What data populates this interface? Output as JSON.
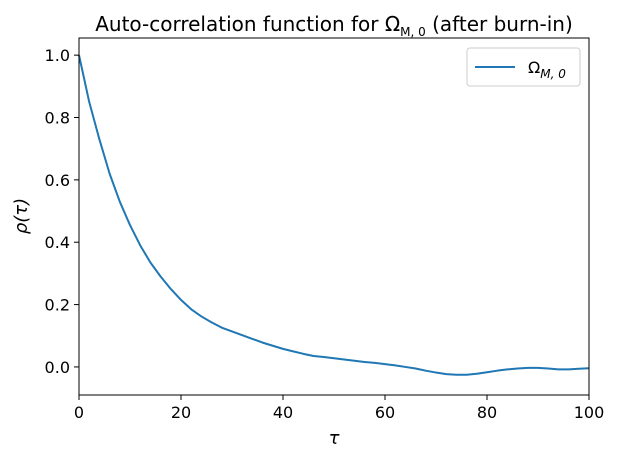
{
  "chart_data": {
    "type": "line",
    "title": {
      "main": "Auto-correlation function for Ω",
      "sub": "M, 0",
      "tail": " (after burn-in)"
    },
    "xlabel": "τ",
    "ylabel": "ρ(τ)",
    "xlim": [
      0,
      100
    ],
    "ylim": [
      -0.09,
      1.055
    ],
    "xticks": [
      0,
      20,
      40,
      60,
      80,
      100
    ],
    "xtick_labels": [
      "0",
      "20",
      "40",
      "60",
      "80",
      "100"
    ],
    "yticks": [
      0.0,
      0.2,
      0.4,
      0.6,
      0.8,
      1.0
    ],
    "ytick_labels": [
      "0.0",
      "0.2",
      "0.4",
      "0.6",
      "0.8",
      "1.0"
    ],
    "grid": false,
    "legend_position": "top-right",
    "series": [
      {
        "name": "Ω",
        "name_sub": "M, 0",
        "color": "#1f77b4",
        "x": [
          0,
          2,
          4,
          6,
          8,
          10,
          12,
          14,
          16,
          18,
          20,
          22,
          24,
          26,
          28,
          30,
          32,
          34,
          36,
          38,
          40,
          42,
          44,
          46,
          48,
          50,
          52,
          54,
          56,
          58,
          60,
          62,
          64,
          66,
          68,
          70,
          72,
          74,
          76,
          78,
          80,
          82,
          84,
          86,
          88,
          90,
          92,
          94,
          96,
          98,
          100
        ],
        "y": [
          1.0,
          0.85,
          0.73,
          0.62,
          0.53,
          0.455,
          0.39,
          0.335,
          0.29,
          0.25,
          0.215,
          0.185,
          0.162,
          0.143,
          0.126,
          0.114,
          0.102,
          0.09,
          0.078,
          0.068,
          0.058,
          0.05,
          0.042,
          0.035,
          0.032,
          0.028,
          0.024,
          0.02,
          0.016,
          0.013,
          0.009,
          0.005,
          0.0,
          -0.005,
          -0.012,
          -0.018,
          -0.023,
          -0.025,
          -0.025,
          -0.022,
          -0.017,
          -0.012,
          -0.008,
          -0.005,
          -0.003,
          -0.003,
          -0.005,
          -0.008,
          -0.008,
          -0.006,
          -0.004
        ]
      }
    ]
  }
}
